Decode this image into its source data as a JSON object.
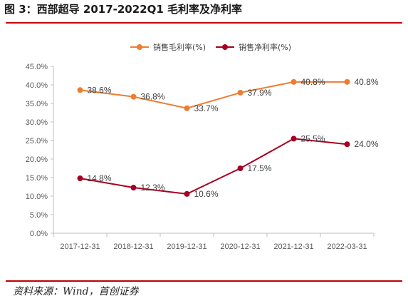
{
  "figure": {
    "title": "图 3：西部超导 2017-2022Q1 毛利率及净利率",
    "source": "资料来源：Wind，首创证券"
  },
  "chart_data": {
    "type": "line",
    "categories": [
      "2017-12-31",
      "2018-12-31",
      "2019-12-31",
      "2020-12-31",
      "2021-12-31",
      "2022-03-31"
    ],
    "series": [
      {
        "name": "销售毛利率(%)",
        "color": "#ed7d31",
        "values": [
          38.6,
          36.8,
          33.7,
          37.9,
          40.8,
          40.8
        ],
        "labels": [
          "38.6%",
          "36.8%",
          "33.7%",
          "37.9%",
          "40.8%",
          "40.8%"
        ]
      },
      {
        "name": "销售净利率(%)",
        "color": "#a50021",
        "values": [
          14.8,
          12.3,
          10.6,
          17.5,
          25.5,
          24.0
        ],
        "labels": [
          "14.8%",
          "12.3%",
          "10.6%",
          "17.5%",
          "25.5%",
          "24.0%"
        ]
      }
    ],
    "ylim": [
      0,
      45
    ],
    "yticks": [
      0,
      5,
      10,
      15,
      20,
      25,
      30,
      35,
      40,
      45
    ],
    "ytick_labels": [
      "0.0%",
      "5.0%",
      "10.0%",
      "15.0%",
      "20.0%",
      "25.0%",
      "30.0%",
      "35.0%",
      "40.0%",
      "45.0%"
    ],
    "grid": false,
    "legend_position": "top-center"
  }
}
